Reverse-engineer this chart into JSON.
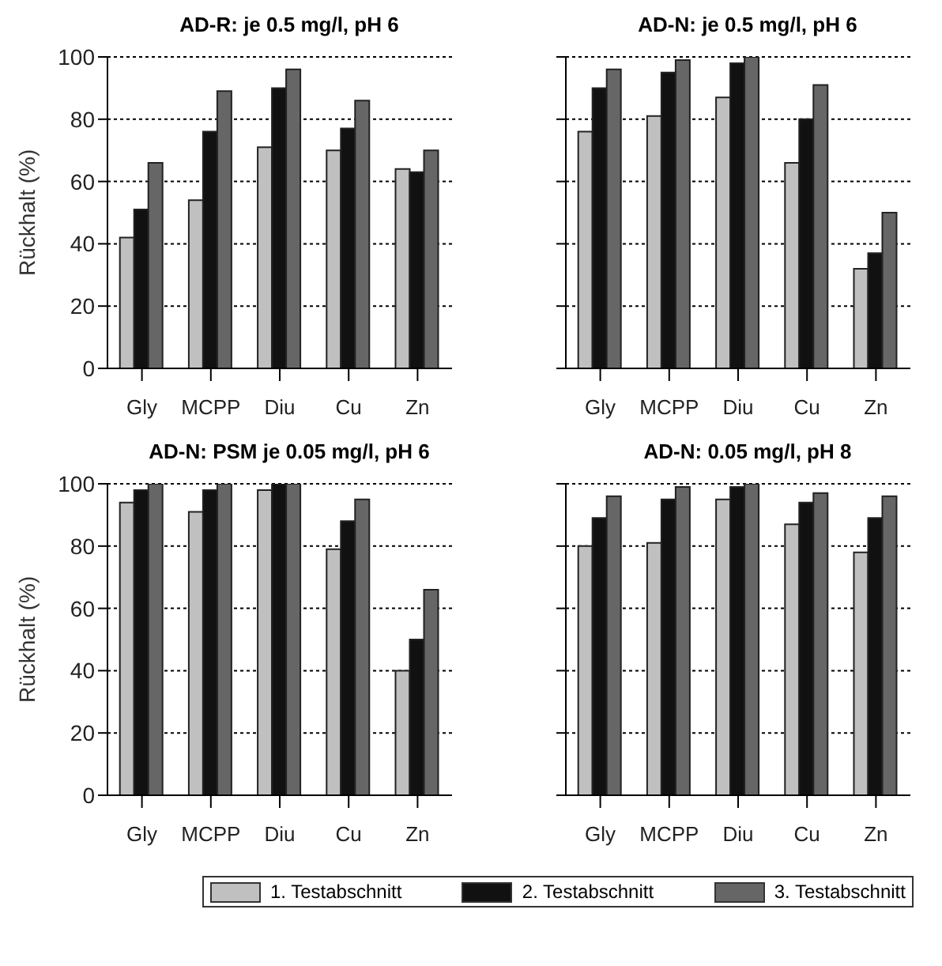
{
  "chart_data": [
    {
      "type": "bar",
      "title": "AD-R: je 0.5 mg/l, pH 6",
      "ylabel": "Rückhalt (%)",
      "categories": [
        "Gly",
        "MCPP",
        "Diu",
        "Cu",
        "Zn"
      ],
      "ylim": [
        0,
        100
      ],
      "yticks": [
        0,
        20,
        40,
        60,
        80,
        100
      ],
      "grid": "y",
      "tick_labels": true,
      "series": [
        {
          "color": "#c0c0c0",
          "values": [
            42,
            54,
            71,
            70,
            64
          ]
        },
        {
          "color": "#111111",
          "values": [
            51,
            76,
            90,
            77,
            63
          ]
        },
        {
          "color": "#666666",
          "values": [
            66,
            89,
            96,
            86,
            70
          ]
        }
      ]
    },
    {
      "type": "bar",
      "title": "AD-N: je 0.5 mg/l, pH 6",
      "categories": [
        "Gly",
        "MCPP",
        "Diu",
        "Cu",
        "Zn"
      ],
      "ylim": [
        0,
        100
      ],
      "yticks": [
        0,
        20,
        40,
        60,
        80,
        100
      ],
      "grid": "y",
      "tick_labels": "x",
      "series": [
        {
          "color": "#c0c0c0",
          "values": [
            76,
            81,
            87,
            66,
            32
          ]
        },
        {
          "color": "#111111",
          "values": [
            90,
            95,
            98,
            80,
            37
          ]
        },
        {
          "color": "#666666",
          "values": [
            96,
            99,
            100,
            91,
            50
          ]
        }
      ]
    },
    {
      "type": "bar",
      "title": "AD-N: PSM je 0.05 mg/l, pH 6",
      "ylabel": "Rückhalt (%)",
      "categories": [
        "Gly",
        "MCPP",
        "Diu",
        "Cu",
        "Zn"
      ],
      "ylim": [
        0,
        100
      ],
      "yticks": [
        0,
        20,
        40,
        60,
        80,
        100
      ],
      "grid": "y",
      "tick_labels": true,
      "series": [
        {
          "color": "#c0c0c0",
          "values": [
            94,
            91,
            98,
            79,
            40
          ]
        },
        {
          "color": "#111111",
          "values": [
            98,
            98,
            100,
            88,
            50
          ]
        },
        {
          "color": "#666666",
          "values": [
            100,
            100,
            100,
            95,
            66
          ]
        }
      ]
    },
    {
      "type": "bar",
      "title": "AD-N: 0.05 mg/l, pH 8",
      "categories": [
        "Gly",
        "MCPP",
        "Diu",
        "Cu",
        "Zn"
      ],
      "ylim": [
        0,
        100
      ],
      "yticks": [
        0,
        20,
        40,
        60,
        80,
        100
      ],
      "grid": "y",
      "tick_labels": "x",
      "legend": "bottom",
      "series": [
        {
          "name": "1. Testabschnitt",
          "color": "#c0c0c0",
          "values": [
            80,
            81,
            95,
            87,
            78
          ]
        },
        {
          "name": "2. Testabschnitt",
          "color": "#111111",
          "values": [
            89,
            95,
            99,
            94,
            89
          ]
        },
        {
          "name": "3. Testabschnitt",
          "color": "#666666",
          "values": [
            96,
            99,
            100,
            97,
            96
          ]
        }
      ]
    }
  ]
}
